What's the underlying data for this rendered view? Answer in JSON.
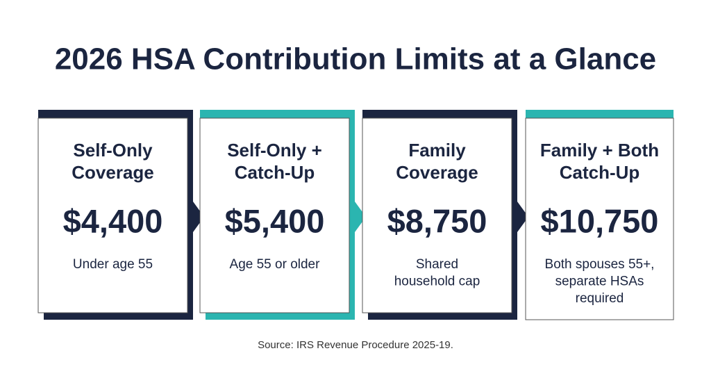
{
  "title": "2026 HSA Contribution Limits at a Glance",
  "cards": [
    {
      "heading": [
        "Self-Only",
        "Coverage"
      ],
      "amount": "$4,400",
      "note": [
        "Under age 55"
      ]
    },
    {
      "heading": [
        "Self-Only +",
        "Catch-Up"
      ],
      "amount": "$5,400",
      "note": [
        "Age 55 or older"
      ]
    },
    {
      "heading": [
        "Family",
        "Coverage"
      ],
      "amount": "$8,750",
      "note": [
        "Shared",
        "household cap"
      ]
    },
    {
      "heading": [
        "Family + Both",
        "Catch-Up"
      ],
      "amount": "$10,750",
      "note": [
        "Both spouses 55+,",
        "separate HSAs",
        "required"
      ]
    }
  ],
  "source": "Source: IRS Revenue Procedure 2025-19."
}
